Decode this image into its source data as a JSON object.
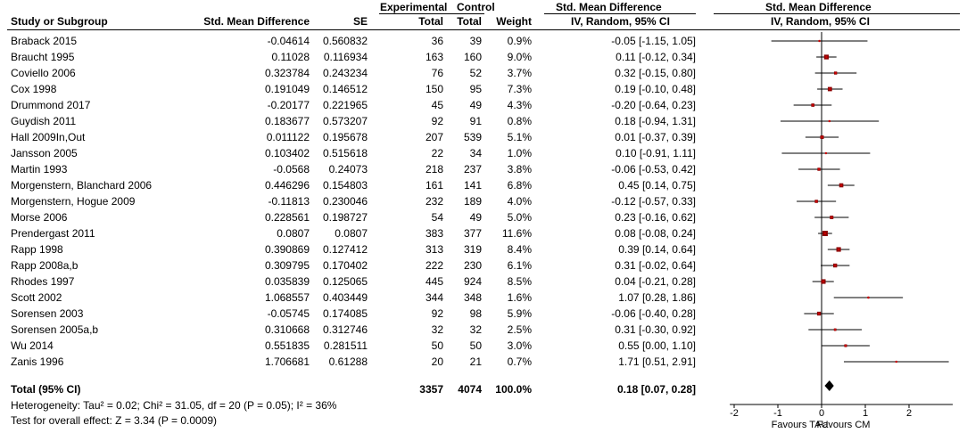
{
  "header": {
    "experimental": "Experimental",
    "control": "Control",
    "smd_top": "Std. Mean Difference",
    "plot_top": "Std. Mean Difference",
    "col_study": "Study or Subgroup",
    "col_smd": "Std. Mean Difference",
    "col_se": "SE",
    "col_exp_total": "Total",
    "col_ctrl_total": "Total",
    "col_weight": "Weight",
    "col_ci": "IV, Random, 95% CI",
    "col_plot": "IV, Random, 95% CI"
  },
  "studies": [
    {
      "name": "Braback 2015",
      "smd": "-0.04614",
      "se": "0.560832",
      "exp": "36",
      "ctrl": "39",
      "weight": "0.9%",
      "ci": "-0.05 [-1.15, 1.05]"
    },
    {
      "name": "Braucht 1995",
      "smd": "0.11028",
      "se": "0.116934",
      "exp": "163",
      "ctrl": "160",
      "weight": "9.0%",
      "ci": "0.11 [-0.12, 0.34]"
    },
    {
      "name": "Coviello 2006",
      "smd": "0.323784",
      "se": "0.243234",
      "exp": "76",
      "ctrl": "52",
      "weight": "3.7%",
      "ci": "0.32 [-0.15, 0.80]"
    },
    {
      "name": "Cox 1998",
      "smd": "0.191049",
      "se": "0.146512",
      "exp": "150",
      "ctrl": "95",
      "weight": "7.3%",
      "ci": "0.19 [-0.10, 0.48]"
    },
    {
      "name": "Drummond 2017",
      "smd": "-0.20177",
      "se": "0.221965",
      "exp": "45",
      "ctrl": "49",
      "weight": "4.3%",
      "ci": "-0.20 [-0.64, 0.23]"
    },
    {
      "name": "Guydish 2011",
      "smd": "0.183677",
      "se": "0.573207",
      "exp": "92",
      "ctrl": "91",
      "weight": "0.8%",
      "ci": "0.18 [-0.94, 1.31]"
    },
    {
      "name": "Hall 2009In,Out",
      "smd": "0.011122",
      "se": "0.195678",
      "exp": "207",
      "ctrl": "539",
      "weight": "5.1%",
      "ci": "0.01 [-0.37, 0.39]"
    },
    {
      "name": "Jansson 2005",
      "smd": "0.103402",
      "se": "0.515618",
      "exp": "22",
      "ctrl": "34",
      "weight": "1.0%",
      "ci": "0.10 [-0.91, 1.11]"
    },
    {
      "name": "Martin 1993",
      "smd": "-0.0568",
      "se": "0.24073",
      "exp": "218",
      "ctrl": "237",
      "weight": "3.8%",
      "ci": "-0.06 [-0.53, 0.42]"
    },
    {
      "name": "Morgenstern, Blanchard 2006",
      "smd": "0.446296",
      "se": "0.154803",
      "exp": "161",
      "ctrl": "141",
      "weight": "6.8%",
      "ci": "0.45 [0.14, 0.75]"
    },
    {
      "name": "Morgenstern, Hogue 2009",
      "smd": "-0.11813",
      "se": "0.230046",
      "exp": "232",
      "ctrl": "189",
      "weight": "4.0%",
      "ci": "-0.12 [-0.57, 0.33]"
    },
    {
      "name": "Morse 2006",
      "smd": "0.228561",
      "se": "0.198727",
      "exp": "54",
      "ctrl": "49",
      "weight": "5.0%",
      "ci": "0.23 [-0.16, 0.62]"
    },
    {
      "name": "Prendergast 2011",
      "smd": "0.0807",
      "se": "0.0807",
      "exp": "383",
      "ctrl": "377",
      "weight": "11.6%",
      "ci": "0.08 [-0.08, 0.24]"
    },
    {
      "name": "Rapp 1998",
      "smd": "0.390869",
      "se": "0.127412",
      "exp": "313",
      "ctrl": "319",
      "weight": "8.4%",
      "ci": "0.39 [0.14, 0.64]"
    },
    {
      "name": "Rapp 2008a,b",
      "smd": "0.309795",
      "se": "0.170402",
      "exp": "222",
      "ctrl": "230",
      "weight": "6.1%",
      "ci": "0.31 [-0.02, 0.64]"
    },
    {
      "name": "Rhodes 1997",
      "smd": "0.035839",
      "se": "0.125065",
      "exp": "445",
      "ctrl": "924",
      "weight": "8.5%",
      "ci": "0.04 [-0.21, 0.28]"
    },
    {
      "name": "Scott 2002",
      "smd": "1.068557",
      "se": "0.403449",
      "exp": "344",
      "ctrl": "348",
      "weight": "1.6%",
      "ci": "1.07 [0.28, 1.86]"
    },
    {
      "name": "Sorensen 2003",
      "smd": "-0.05745",
      "se": "0.174085",
      "exp": "92",
      "ctrl": "98",
      "weight": "5.9%",
      "ci": "-0.06 [-0.40, 0.28]"
    },
    {
      "name": "Sorensen 2005a,b",
      "smd": "0.310668",
      "se": "0.312746",
      "exp": "32",
      "ctrl": "32",
      "weight": "2.5%",
      "ci": "0.31 [-0.30, 0.92]"
    },
    {
      "name": "Wu 2014",
      "smd": "0.551835",
      "se": "0.281511",
      "exp": "50",
      "ctrl": "50",
      "weight": "3.0%",
      "ci": "0.55 [0.00, 1.10]"
    },
    {
      "name": "Zanis 1996",
      "smd": "1.706681",
      "se": "0.61288",
      "exp": "20",
      "ctrl": "21",
      "weight": "0.7%",
      "ci": "1.71 [0.51, 2.91]"
    }
  ],
  "total": {
    "label": "Total (95% CI)",
    "exp": "3357",
    "ctrl": "4074",
    "weight": "100.0%",
    "ci": "0.18 [0.07, 0.28]"
  },
  "footnotes": {
    "heterogeneity": "Heterogeneity: Tau² = 0.02; Chi² = 31.05, df = 20 (P = 0.05); I² = 36%",
    "overall": "Test for overall effect: Z = 3.34 (P = 0.0009)"
  },
  "favours": {
    "left": "Favours TAU",
    "right": "Favours CM"
  },
  "chart_data": {
    "type": "forest",
    "xlim": [
      -2,
      3
    ],
    "xticks": [
      "-2",
      "-1",
      "0",
      "1",
      "2"
    ],
    "xtick_values": [
      -2,
      -1,
      0,
      1,
      2
    ],
    "estimates": [
      {
        "study": "Braback 2015",
        "est": -0.05,
        "lo": -1.15,
        "hi": 1.05
      },
      {
        "study": "Braucht 1995",
        "est": 0.11,
        "lo": -0.12,
        "hi": 0.34
      },
      {
        "study": "Coviello 2006",
        "est": 0.32,
        "lo": -0.15,
        "hi": 0.8
      },
      {
        "study": "Cox 1998",
        "est": 0.19,
        "lo": -0.1,
        "hi": 0.48
      },
      {
        "study": "Drummond 2017",
        "est": -0.2,
        "lo": -0.64,
        "hi": 0.23
      },
      {
        "study": "Guydish 2011",
        "est": 0.18,
        "lo": -0.94,
        "hi": 1.31
      },
      {
        "study": "Hall 2009In,Out",
        "est": 0.01,
        "lo": -0.37,
        "hi": 0.39
      },
      {
        "study": "Jansson 2005",
        "est": 0.1,
        "lo": -0.91,
        "hi": 1.11
      },
      {
        "study": "Martin 1993",
        "est": -0.06,
        "lo": -0.53,
        "hi": 0.42
      },
      {
        "study": "Morgenstern, Blanchard 2006",
        "est": 0.45,
        "lo": 0.14,
        "hi": 0.75
      },
      {
        "study": "Morgenstern, Hogue 2009",
        "est": -0.12,
        "lo": -0.57,
        "hi": 0.33
      },
      {
        "study": "Morse 2006",
        "est": 0.23,
        "lo": -0.16,
        "hi": 0.62
      },
      {
        "study": "Prendergast 2011",
        "est": 0.08,
        "lo": -0.08,
        "hi": 0.24
      },
      {
        "study": "Rapp 1998",
        "est": 0.39,
        "lo": 0.14,
        "hi": 0.64
      },
      {
        "study": "Rapp 2008a,b",
        "est": 0.31,
        "lo": -0.02,
        "hi": 0.64
      },
      {
        "study": "Rhodes 1997",
        "est": 0.04,
        "lo": -0.21,
        "hi": 0.28
      },
      {
        "study": "Scott 2002",
        "est": 1.07,
        "lo": 0.28,
        "hi": 1.86
      },
      {
        "study": "Sorensen 2003",
        "est": -0.06,
        "lo": -0.4,
        "hi": 0.28
      },
      {
        "study": "Sorensen 2005a,b",
        "est": 0.31,
        "lo": -0.3,
        "hi": 0.92
      },
      {
        "study": "Wu 2014",
        "est": 0.55,
        "lo": 0.0,
        "hi": 1.1
      },
      {
        "study": "Zanis 1996",
        "est": 1.71,
        "lo": 0.51,
        "hi": 2.91
      }
    ],
    "weights": [
      0.9,
      9.0,
      3.7,
      7.3,
      4.3,
      0.8,
      5.1,
      1.0,
      3.8,
      6.8,
      4.0,
      5.0,
      11.6,
      8.4,
      6.1,
      8.5,
      1.6,
      5.9,
      2.5,
      3.0,
      0.7
    ],
    "pooled": {
      "est": 0.18,
      "lo": 0.07,
      "hi": 0.28
    },
    "colors": {
      "point": "#cc0000",
      "line": "#000000",
      "square": "#8b0000"
    }
  }
}
